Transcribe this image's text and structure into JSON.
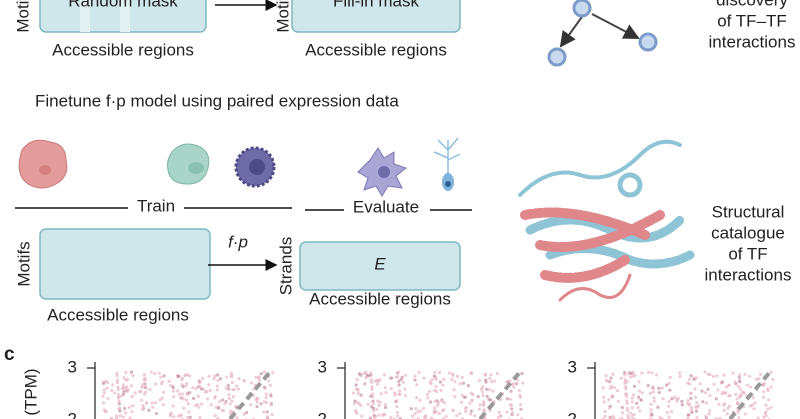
{
  "top_row": {
    "left_box": {
      "label": "Random mask",
      "y_label": "Motifs",
      "x_label": "Accessible regions"
    },
    "right_box": {
      "label": "Fill-in mask",
      "y_label": "Motifs",
      "x_label": "Accessible regions"
    },
    "side_text": [
      "discovery",
      "of TF–TF",
      "interactions"
    ]
  },
  "finetune": {
    "title": "Finetune f·p model using paired expression data",
    "train_label": "Train",
    "evaluate_label": "Evaluate",
    "left_box": {
      "y_label": "Motifs",
      "x_label": "Accessible regions"
    },
    "arrow_label": "f·p",
    "right_box": {
      "label": "E",
      "y_label": "Strands",
      "x_label": "Accessible regions"
    },
    "side_text": [
      "Structural",
      "catalogue",
      "of TF",
      "interactions"
    ]
  },
  "panel_c": {
    "letter": "c",
    "y_label": "(TPM)",
    "plots": [
      {
        "yticks": [
          3,
          2
        ]
      },
      {
        "yticks": [
          3,
          2
        ]
      },
      {
        "yticks": [
          3,
          2
        ]
      }
    ]
  }
}
